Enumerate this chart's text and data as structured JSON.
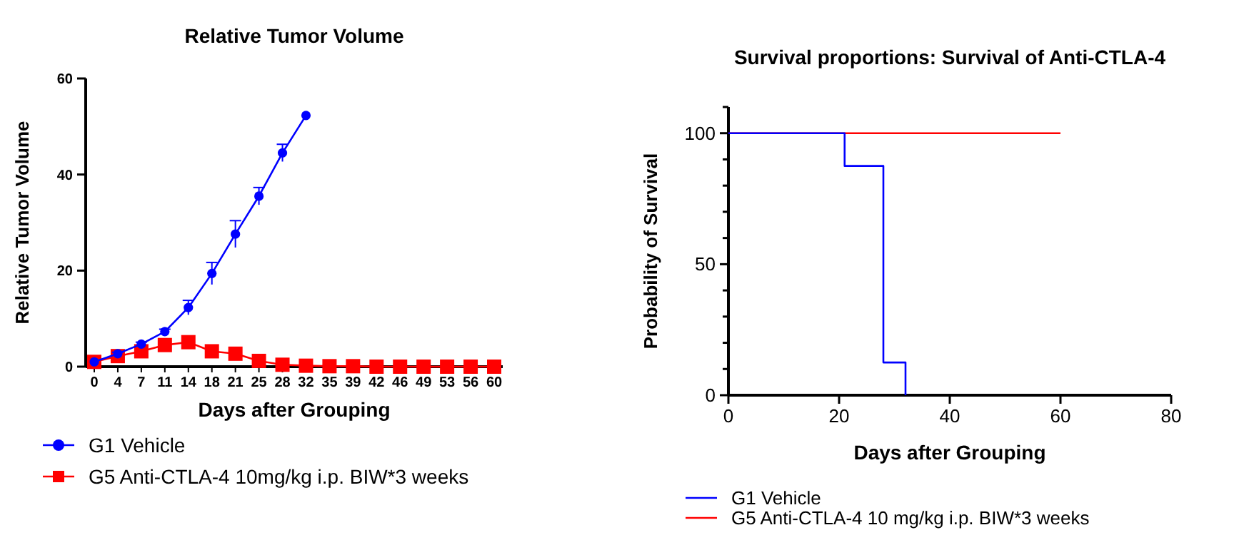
{
  "chart_data": [
    {
      "type": "line",
      "title": "Relative Tumor Volume",
      "xlabel": "Days after Grouping",
      "ylabel": "Relative Tumor Volume",
      "categories": [
        "0",
        "4",
        "7",
        "11",
        "14",
        "18",
        "21",
        "25",
        "28",
        "32",
        "35",
        "39",
        "42",
        "46",
        "49",
        "53",
        "56",
        "60"
      ],
      "ylim": [
        0,
        60
      ],
      "yticks": [
        0,
        20,
        40,
        60
      ],
      "legend": "bottom",
      "grid": false,
      "series": [
        {
          "name": "G1 Vehicle",
          "color": "#0000ff",
          "marker": "circle",
          "values": [
            1,
            2.7,
            4.7,
            7.3,
            12.3,
            19.4,
            27.6,
            35.5,
            44.5,
            52.3,
            null,
            null,
            null,
            null,
            null,
            null,
            null,
            null
          ],
          "errors": [
            null,
            0.3,
            0.4,
            0.5,
            1.5,
            2.3,
            2.8,
            1.8,
            1.8,
            null,
            null,
            null,
            null,
            null,
            null,
            null,
            null,
            null
          ]
        },
        {
          "name": "G5 Anti-CTLA-4 10mg/kg i.p. BIW*3 weeks",
          "color": "#ff0000",
          "marker": "square",
          "values": [
            1,
            2.2,
            3.2,
            4.5,
            5.1,
            3.2,
            2.7,
            1.2,
            0.4,
            0.2,
            0.1,
            0.1,
            0,
            0,
            0,
            0,
            0,
            0
          ]
        }
      ]
    },
    {
      "type": "step",
      "title": "Survival proportions: Survival of Anti-CTLA-4",
      "xlabel": "Days after Grouping",
      "ylabel": "Probability of Survival",
      "xlim": [
        0,
        80
      ],
      "xticks": [
        0,
        20,
        40,
        60,
        80
      ],
      "ylim": [
        0,
        110
      ],
      "yticks": [
        0,
        {
          "value": 10,
          "label": null
        },
        {
          "value": 20,
          "label": null
        },
        {
          "value": 30,
          "label": null
        },
        {
          "value": 40,
          "label": null
        },
        50,
        {
          "value": 60,
          "label": null
        },
        {
          "value": 70,
          "label": null
        },
        {
          "value": 80,
          "label": null
        },
        {
          "value": 90,
          "label": null
        },
        100,
        {
          "value": 110,
          "label": null
        }
      ],
      "legend": "bottom",
      "grid": false,
      "marker": "none",
      "series": [
        {
          "name": "G1 Vehicle",
          "color": "#0000ff",
          "x": [
            0,
            21,
            28,
            32
          ],
          "values": [
            100,
            87.5,
            12.5,
            0
          ]
        },
        {
          "name": "G5 Anti-CTLA-4 10 mg/kg i.p. BIW*3 weeks",
          "color": "#ff0000",
          "x": [
            0,
            60
          ],
          "values": [
            100,
            100
          ]
        }
      ]
    }
  ]
}
